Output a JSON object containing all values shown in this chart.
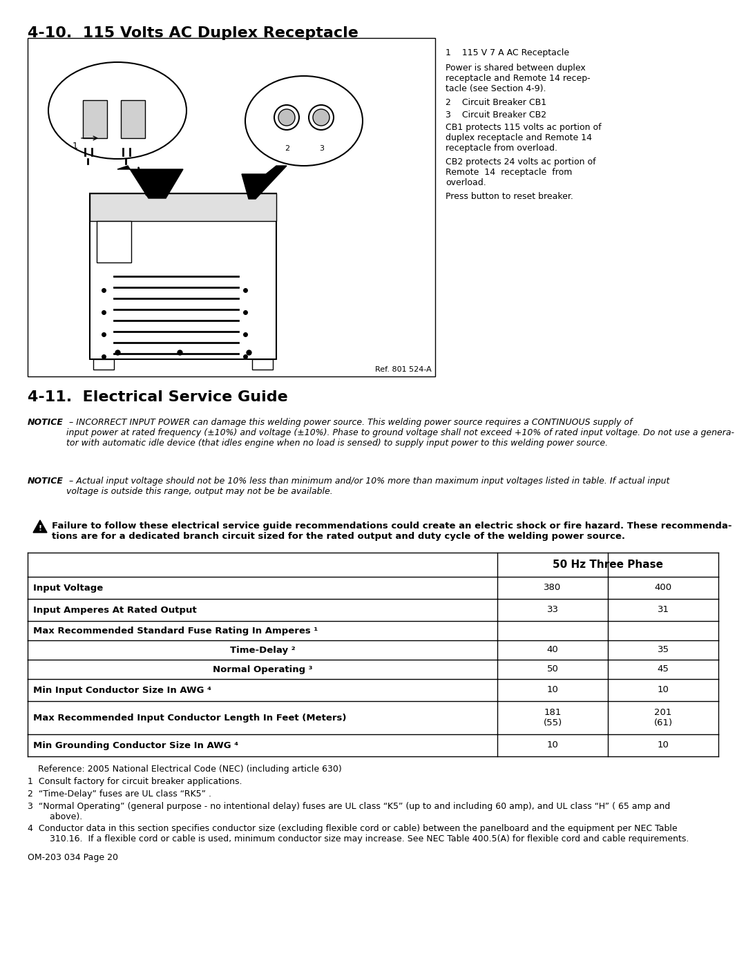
{
  "page_title_1": "4-10.  115 Volts AC Duplex Receptacle",
  "page_title_2": "4-11.  Electrical Service Guide",
  "section1_ref": "Ref. 801 524-A",
  "callout_1": "1    115 V 7 A AC Receptacle",
  "callout_text_1": "Power is shared between duplex receptacle and Remote 14 receptacle (see Section 4-9).",
  "callout_2": "2    Circuit Breaker CB1",
  "callout_3": "3    Circuit Breaker CB2",
  "callout_text_2": "CB1 protects 115 volts ac portion of duplex receptacle and Remote 14 receptacle from overload.",
  "callout_text_3": "CB2 protects 24 volts ac portion of Remote  14  receptacle  from overload.",
  "callout_text_4": "Press button to reset breaker.",
  "notice1_bold": "NOTICE",
  "notice1_text": " – INCORRECT INPUT POWER can damage this welding power source. This welding power source requires a CONTINUOUS supply of input power at rated frequency (±10%) and voltage (±10%). Phase to ground voltage shall not exceed +10% of rated input voltage. Do not use a generator with automatic idle device (that idles engine when no load is sensed) to supply input power to this welding power source.",
  "notice2_bold": "NOTICE",
  "notice2_text": " – Actual input voltage should not be 10% less than minimum and/or 10% more than maximum input voltages listed in table. If actual input voltage is outside this range, output may not be be available.",
  "warning_text": "Failure to follow these electrical service guide recommendations could create an electric shock or fire hazard. These recommendations are for a dedicated branch circuit sized for the rated output and duty cycle of the welding power source.",
  "table_header": "50 Hz Three Phase",
  "table_col1": [
    "Input Voltage",
    "Input Amperes At Rated Output",
    "Max Recommended Standard Fuse Rating In Amperes ¹",
    "Time-Delay ²",
    "Normal Operating ³",
    "Min Input Conductor Size In AWG ⁴",
    "Max Recommended Input Conductor Length In Feet (Meters)",
    "Min Grounding Conductor Size In AWG ⁴"
  ],
  "table_col2": [
    "380",
    "33",
    "",
    "40",
    "50",
    "10",
    "181\n(55)",
    "10"
  ],
  "table_col3": [
    "400",
    "31",
    "",
    "35",
    "45",
    "10",
    "201\n(61)",
    "10"
  ],
  "reference": "Reference: 2005 National Electrical Code (NEC) (including article 630)",
  "footnote1": "1  Consult factory for circuit breaker applications.",
  "footnote2": "2  “Time-Delay” fuses are UL class “RK5” .",
  "footnote3": "3  “Normal Operating” (general purpose - no intentional delay) fuses are UL class “K5” (up to and including 60 amp), and UL class “H” ( 65 amp and\n        above).",
  "footnote4": "4  Conductor data in this section specifies conductor size (excluding flexible cord or cable) between the panelboard and the equipment per NEC Table\n        310.16.  If a flexible cord or cable is used, minimum conductor size may increase. See NEC Table 400.5(A) for flexible cord and cable requirements.",
  "footer": "OM-203 034 Page 20",
  "bg_color": "#ffffff",
  "text_color": "#000000",
  "border_color": "#000000"
}
